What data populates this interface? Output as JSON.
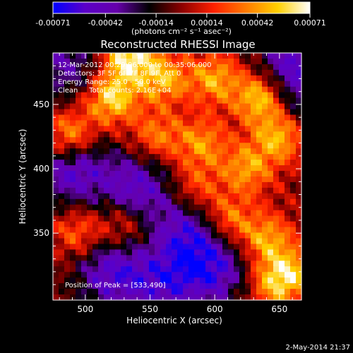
{
  "chart_data": {
    "type": "heatmap",
    "title": "Reconstructed RHESSI Image",
    "xlabel": "Heliocentric X (arcsec)",
    "ylabel": "Heliocentric Y (arcsec)",
    "xlim": [
      475,
      667
    ],
    "ylim": [
      298,
      490
    ],
    "x_ticks": [
      500,
      550,
      600,
      650
    ],
    "y_ticks": [
      350,
      400,
      450
    ],
    "colorbar": {
      "range": [
        -0.00071,
        0.00071
      ],
      "ticks": [
        -0.00071,
        -0.00042,
        -0.00014,
        0.00014,
        0.00042,
        0.00071
      ],
      "tick_labels": [
        "-0.00071",
        "-0.00042",
        "-0.00014",
        "0.00014",
        "0.00042",
        "0.00071"
      ],
      "unit_label": "(photons cm⁻² s⁻¹ asec⁻²)",
      "stops": [
        "#0000ff",
        "#5b00c8",
        "#6600aa",
        "#000000",
        "#8b0000",
        "#ff2000",
        "#ff7a00",
        "#ffd000",
        "#ffffff"
      ]
    },
    "annotations": [
      "12-Mar-2012 00:29:06.000 to 00:35:06.000",
      "Detectors: 3F 5F 6F 7F 8F 9F, Att 0",
      "Energy Range: 25.0 - 50.0 keV",
      "Clean     Total counts: 2.16E+04",
      "Position of Peak = [533,490]"
    ],
    "peak": {
      "x": 533,
      "y": 490
    },
    "footer_date": "2-May-2014 21:37",
    "hot_regions": [
      {
        "x": 520,
        "y": 455,
        "w": 1.0
      },
      {
        "x": 488,
        "y": 425,
        "w": 0.9
      },
      {
        "x": 533,
        "y": 488,
        "w": 1.1
      },
      {
        "x": 560,
        "y": 470,
        "w": 0.8
      },
      {
        "x": 600,
        "y": 470,
        "w": 0.75
      },
      {
        "x": 635,
        "y": 455,
        "w": 1.0
      },
      {
        "x": 650,
        "y": 425,
        "w": 0.85
      },
      {
        "x": 625,
        "y": 400,
        "w": 0.7
      },
      {
        "x": 590,
        "y": 420,
        "w": 0.65
      },
      {
        "x": 555,
        "y": 425,
        "w": 0.6
      },
      {
        "x": 610,
        "y": 360,
        "w": 0.7
      },
      {
        "x": 640,
        "y": 345,
        "w": 0.75
      },
      {
        "x": 660,
        "y": 320,
        "w": 0.65
      },
      {
        "x": 645,
        "y": 310,
        "w": 0.7
      },
      {
        "x": 495,
        "y": 350,
        "w": 0.55
      },
      {
        "x": 530,
        "y": 355,
        "w": 0.5
      },
      {
        "x": 585,
        "y": 385,
        "w": 0.5
      }
    ],
    "cold_regions": [
      {
        "x": 490,
        "y": 400,
        "w": 1.0
      },
      {
        "x": 540,
        "y": 385,
        "w": 0.9
      },
      {
        "x": 580,
        "y": 350,
        "w": 0.9
      },
      {
        "x": 600,
        "y": 320,
        "w": 0.9
      },
      {
        "x": 520,
        "y": 320,
        "w": 0.95
      },
      {
        "x": 485,
        "y": 480,
        "w": 0.7
      },
      {
        "x": 660,
        "y": 485,
        "w": 0.8
      },
      {
        "x": 665,
        "y": 455,
        "w": 0.5
      },
      {
        "x": 560,
        "y": 310,
        "w": 0.8
      }
    ]
  }
}
